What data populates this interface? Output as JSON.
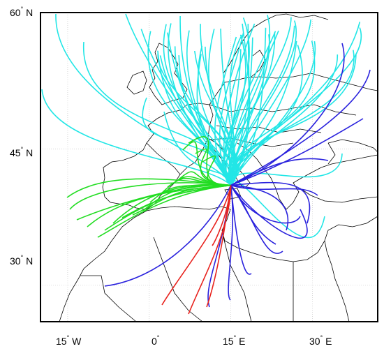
{
  "map": {
    "lat_labels": [
      {
        "value": "60",
        "deg": "°",
        "hemi": "N"
      },
      {
        "value": "45",
        "deg": "°",
        "hemi": "N"
      },
      {
        "value": "30",
        "deg": "°",
        "hemi": "N"
      }
    ],
    "lon_labels": [
      {
        "value": "15",
        "deg": "°",
        "hemi": "W"
      },
      {
        "value": "0",
        "deg": "°",
        "hemi": ""
      },
      {
        "value": "15",
        "deg": "°",
        "hemi": "E"
      },
      {
        "value": "30",
        "deg": "°",
        "hemi": "E"
      }
    ],
    "extent": {
      "lon": [
        -20,
        42
      ],
      "lat": [
        26,
        60
      ]
    },
    "gridlines": {
      "lon": [
        -15,
        0,
        15,
        30
      ],
      "lat": [
        30,
        45,
        60
      ]
    },
    "convergence_point": {
      "lon": 15,
      "lat": 41
    },
    "colors": {
      "cyan": "#22e6e6",
      "green": "#22dd22",
      "blue": "#2a22dd",
      "red": "#e8231e",
      "coast": "#000000",
      "grid": "#bfbfbf"
    },
    "trajectory_groups": [
      {
        "color_key": "cyan",
        "origin": "north"
      },
      {
        "color_key": "green",
        "origin": "west"
      },
      {
        "color_key": "blue",
        "origin": "east-south"
      },
      {
        "color_key": "red",
        "origin": "south"
      }
    ]
  }
}
